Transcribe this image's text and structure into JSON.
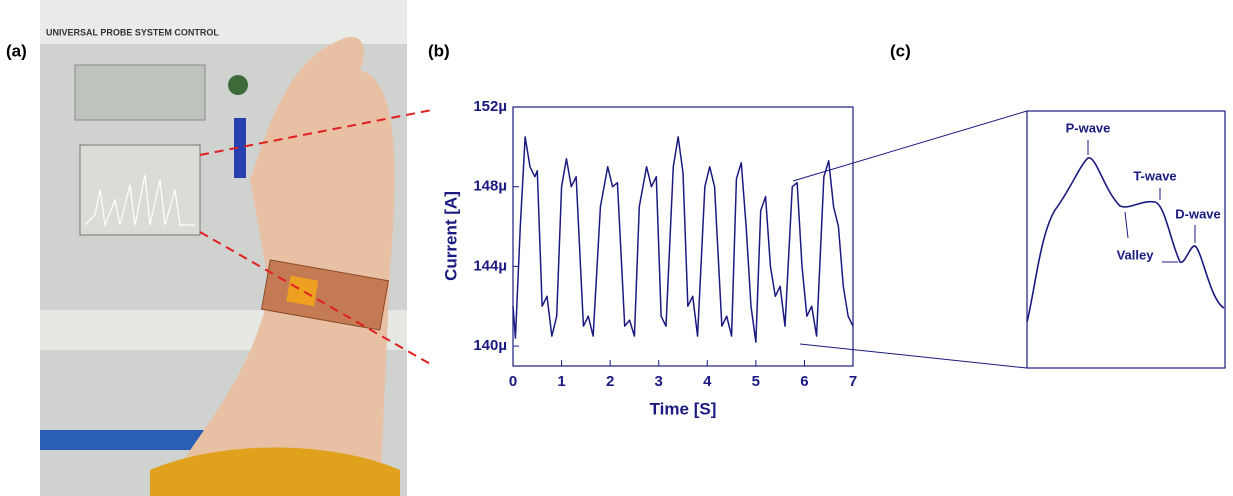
{
  "chart_data": {
    "type": "line",
    "x_label": "Time [S]",
    "y_label": "Current [A]",
    "x": [
      0,
      0.05,
      0.15,
      0.25,
      0.35,
      0.45,
      0.5,
      0.6,
      0.7,
      0.8,
      0.9,
      1.0,
      1.1,
      1.2,
      1.3,
      1.45,
      1.55,
      1.65,
      1.8,
      1.95,
      2.05,
      2.15,
      2.3,
      2.4,
      2.5,
      2.6,
      2.75,
      2.85,
      2.95,
      3.05,
      3.15,
      3.3,
      3.4,
      3.5,
      3.6,
      3.7,
      3.8,
      3.95,
      4.05,
      4.15,
      4.3,
      4.4,
      4.5,
      4.6,
      4.7,
      4.8,
      4.9,
      5.0,
      5.1,
      5.2,
      5.3,
      5.4,
      5.5,
      5.6,
      5.75,
      5.85,
      5.95,
      6.05,
      6.15,
      6.25,
      6.4,
      6.5,
      6.6,
      6.7,
      6.8,
      6.9,
      7.0
    ],
    "series": [
      {
        "color": "#1a1a80",
        "values": [
          0.000142,
          0.0001404,
          0.000146,
          0.0001505,
          0.000149,
          0.0001485,
          0.0001488,
          0.000142,
          0.0001425,
          0.0001405,
          0.0001415,
          0.000148,
          0.0001494,
          0.000148,
          0.0001485,
          0.000141,
          0.0001415,
          0.0001405,
          0.000147,
          0.000149,
          0.000148,
          0.0001482,
          0.000141,
          0.0001413,
          0.0001405,
          0.000147,
          0.000149,
          0.000148,
          0.0001485,
          0.0001415,
          0.000141,
          0.000149,
          0.0001505,
          0.0001487,
          0.000142,
          0.0001425,
          0.0001405,
          0.000148,
          0.000149,
          0.000148,
          0.000141,
          0.0001415,
          0.0001405,
          0.0001484,
          0.0001492,
          0.000146,
          0.000142,
          0.0001402,
          0.0001468,
          0.0001475,
          0.000144,
          0.0001425,
          0.000143,
          0.000141,
          0.000148,
          0.0001482,
          0.000144,
          0.0001415,
          0.000142,
          0.0001405,
          0.0001485,
          0.0001493,
          0.000147,
          0.000146,
          0.000143,
          0.0001415,
          0.000141
        ]
      }
    ],
    "xlim": [
      0,
      7
    ],
    "xticks": [
      0,
      1,
      2,
      3,
      4,
      5,
      6,
      7
    ],
    "ylim": [
      0.000139,
      0.000152
    ],
    "yticks": [
      {
        "value": 0.00014,
        "label": "140µ"
      },
      {
        "value": 0.000144,
        "label": "144µ"
      },
      {
        "value": 0.000148,
        "label": "148µ"
      },
      {
        "value": 0.000152,
        "label": "152µ"
      }
    ]
  },
  "panel_labels": [
    "(a)",
    "(b)",
    "(c)"
  ],
  "photo": {
    "window_title": "UNIVERSAL PROBE SYSTEM CONTROL"
  },
  "zoom": {
    "annotations": [
      "P-wave",
      "T-wave",
      "D-wave",
      "Valley"
    ]
  }
}
